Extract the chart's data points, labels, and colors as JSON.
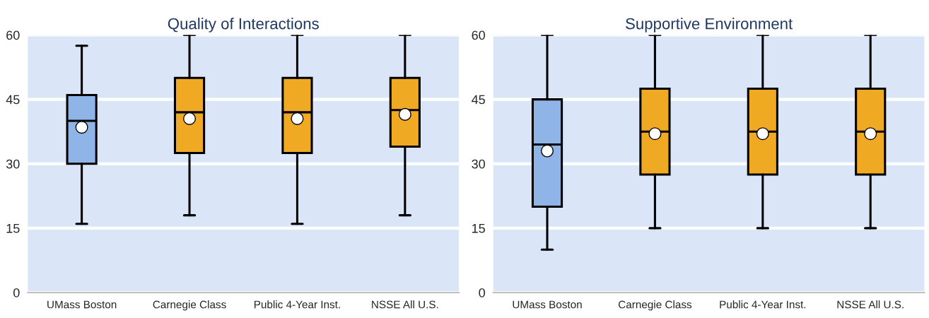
{
  "chart_data": [
    {
      "type": "box",
      "title": "Quality of Interactions",
      "categories": [
        "UMass Boston",
        "Carnegie Class",
        "Public 4-Year Inst.",
        "NSSE All U.S."
      ],
      "boxes": [
        {
          "low": 16,
          "q1": 30,
          "median": 40,
          "q3": 46,
          "high": 57.5,
          "mean": 38.5
        },
        {
          "low": 18,
          "q1": 32.5,
          "median": 42,
          "q3": 50,
          "high": 60,
          "mean": 40.5
        },
        {
          "low": 16,
          "q1": 32.5,
          "median": 42,
          "q3": 50,
          "high": 60,
          "mean": 40.5
        },
        {
          "low": 18,
          "q1": 34,
          "median": 42.5,
          "q3": 50,
          "high": 60,
          "mean": 41.5
        }
      ],
      "colors": [
        "#8eb4e8",
        "#f0a923",
        "#f0a923",
        "#f0a923"
      ],
      "ylim": [
        0,
        60
      ],
      "yticks": [
        0,
        15,
        30,
        45,
        60
      ],
      "grid": "y"
    },
    {
      "type": "box",
      "title": "Supportive Environment",
      "categories": [
        "UMass Boston",
        "Carnegie Class",
        "Public 4-Year Inst.",
        "NSSE All U.S."
      ],
      "boxes": [
        {
          "low": 10,
          "q1": 20,
          "median": 34.5,
          "q3": 45,
          "high": 60,
          "mean": 33
        },
        {
          "low": 15,
          "q1": 27.5,
          "median": 37.5,
          "q3": 47.5,
          "high": 60,
          "mean": 37
        },
        {
          "low": 15,
          "q1": 27.5,
          "median": 37.5,
          "q3": 47.5,
          "high": 60,
          "mean": 37
        },
        {
          "low": 15,
          "q1": 27.5,
          "median": 37.5,
          "q3": 47.5,
          "high": 60,
          "mean": 37
        }
      ],
      "colors": [
        "#8eb4e8",
        "#f0a923",
        "#f0a923",
        "#f0a923"
      ],
      "ylim": [
        0,
        60
      ],
      "yticks": [
        0,
        15,
        30,
        45,
        60
      ],
      "grid": "y"
    }
  ]
}
